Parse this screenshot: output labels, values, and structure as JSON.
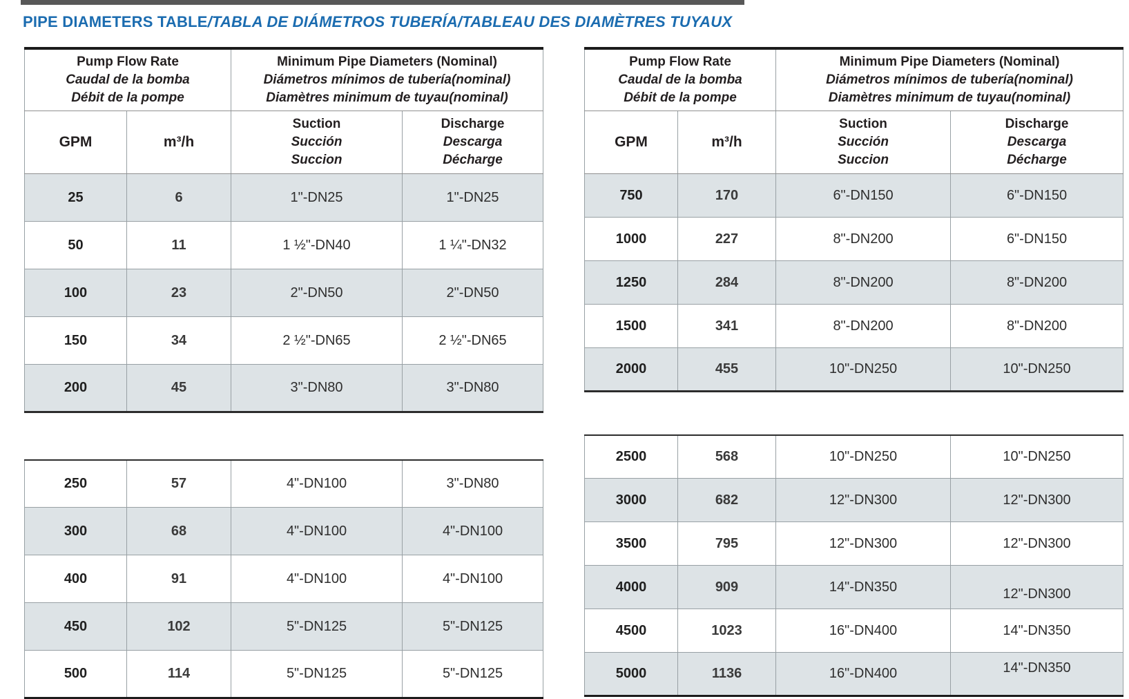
{
  "page": {
    "title": {
      "en": "PIPE DIAMETERS TABLE",
      "rest": "/TABLA DE DIÁMETROS TUBERÍA/TABLEAU DES DIAMÈTRES TUYAUX"
    }
  },
  "colors": {
    "title_blue": "#1b6cb0",
    "row_shade": "#dde3e6",
    "border_gray": "#98a0a4",
    "border_dark": "#1b1b1b"
  },
  "header": {
    "flow_rate": [
      "Pump Flow Rate",
      "Caudal de la bomba",
      "Débit de la pompe"
    ],
    "min_diam": [
      "Minimum Pipe Diameters (Nominal)",
      "Diámetros mínimos de tubería(nominal)",
      "Diamètres minimum de tuyau(nominal)"
    ],
    "gpm": "GPM",
    "m3h": "m³/h",
    "suction": [
      "Suction",
      "Succión",
      "Succion"
    ],
    "discharge": [
      "Discharge",
      "Descarga",
      "Décharge"
    ]
  },
  "columns": [
    "gpm-value",
    "m3h-value",
    "suction-value",
    "discharge-value"
  ],
  "tables": [
    {
      "id": "table-left",
      "sections": [
        {
          "rows": [
            [
              "25",
              "6",
              "1\"-DN25",
              "1\"-DN25"
            ],
            [
              "50",
              "11",
              "1 ½\"-DN40",
              "1 ¼\"-DN32"
            ],
            [
              "100",
              "23",
              "2\"-DN50",
              "2\"-DN50"
            ],
            [
              "150",
              "34",
              "2 ½\"-DN65",
              "2 ½\"-DN65"
            ],
            [
              "200",
              "45",
              "3\"-DN80",
              "3\"-DN80"
            ]
          ]
        },
        {
          "rows": [
            [
              "250",
              "57",
              "4\"-DN100",
              "3\"-DN80"
            ],
            [
              "300",
              "68",
              "4\"-DN100",
              "4\"-DN100"
            ],
            [
              "400",
              "91",
              "4\"-DN100",
              "4\"-DN100"
            ],
            [
              "450",
              "102",
              "5\"-DN125",
              "5\"-DN125"
            ],
            [
              "500",
              "114",
              "5\"-DN125",
              "5\"-DN125"
            ]
          ]
        }
      ]
    },
    {
      "id": "table-right",
      "sections": [
        {
          "rows": [
            [
              "750",
              "170",
              "6\"-DN150",
              "6\"-DN150"
            ],
            [
              "1000",
              "227",
              "8\"-DN200",
              "6\"-DN150"
            ],
            [
              "1250",
              "284",
              "8\"-DN200",
              "8\"-DN200"
            ],
            [
              "1500",
              "341",
              "8\"-DN200",
              "8\"-DN200"
            ],
            [
              "2000",
              "455",
              "10\"-DN250",
              "10\"-DN250"
            ]
          ]
        },
        {
          "rows": [
            [
              "2500",
              "568",
              "10\"-DN250",
              "10\"-DN250"
            ],
            [
              "3000",
              "682",
              "12\"-DN300",
              "12\"-DN300"
            ],
            [
              "3500",
              "795",
              "12\"-DN300",
              "12\"-DN300"
            ],
            [
              "4000",
              "909",
              "14\"-DN350",
              "12\"-DN300"
            ],
            [
              "4500",
              "1023",
              "16\"-DN400",
              "14\"-DN350"
            ],
            [
              "5000",
              "1136",
              "16\"-DN400",
              "14\"-DN350"
            ]
          ]
        }
      ]
    }
  ]
}
